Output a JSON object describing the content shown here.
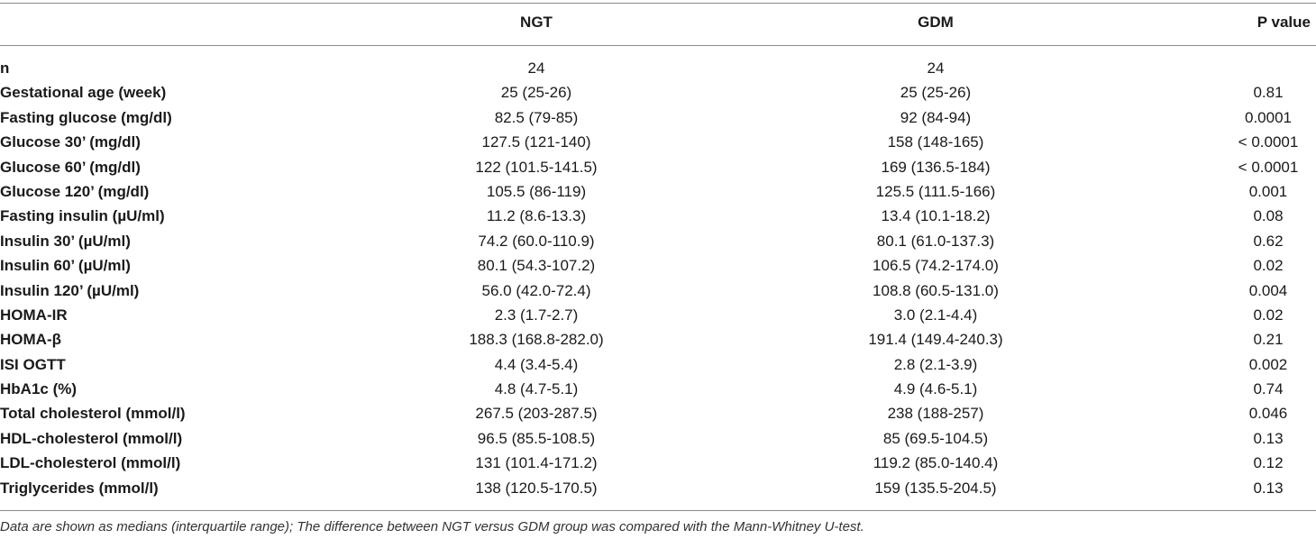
{
  "table": {
    "headers": {
      "label": "",
      "ngt": "NGT",
      "gdm": "GDM",
      "p": "P value"
    },
    "rows": [
      {
        "label": "n",
        "ngt": "24",
        "gdm": "24",
        "p": ""
      },
      {
        "label": "Gestational age (week)",
        "ngt": "25 (25-26)",
        "gdm": "25 (25-26)",
        "p": "0.81"
      },
      {
        "label": "Fasting glucose (mg/dl)",
        "ngt": "82.5 (79-85)",
        "gdm": "92 (84-94)",
        "p": "0.0001"
      },
      {
        "label": "Glucose 30’ (mg/dl)",
        "ngt": "127.5 (121-140)",
        "gdm": "158 (148-165)",
        "p": "< 0.0001"
      },
      {
        "label": "Glucose 60’ (mg/dl)",
        "ngt": "122 (101.5-141.5)",
        "gdm": "169 (136.5-184)",
        "p": "< 0.0001"
      },
      {
        "label": "Glucose 120’ (mg/dl)",
        "ngt": "105.5 (86-119)",
        "gdm": "125.5 (111.5-166)",
        "p": "0.001"
      },
      {
        "label": "Fasting insulin (µU/ml)",
        "ngt": "11.2 (8.6-13.3)",
        "gdm": "13.4 (10.1-18.2)",
        "p": "0.08"
      },
      {
        "label": "Insulin 30’ (µU/ml)",
        "ngt": "74.2 (60.0-110.9)",
        "gdm": "80.1 (61.0-137.3)",
        "p": "0.62"
      },
      {
        "label": "Insulin 60’ (µU/ml)",
        "ngt": "80.1 (54.3-107.2)",
        "gdm": "106.5 (74.2-174.0)",
        "p": "0.02"
      },
      {
        "label": "Insulin 120’ (µU/ml)",
        "ngt": "56.0 (42.0-72.4)",
        "gdm": "108.8 (60.5-131.0)",
        "p": "0.004"
      },
      {
        "label": "HOMA-IR",
        "ngt": "2.3 (1.7-2.7)",
        "gdm": "3.0 (2.1-4.4)",
        "p": "0.02"
      },
      {
        "label": "HOMA-β",
        "ngt": "188.3 (168.8-282.0)",
        "gdm": "191.4 (149.4-240.3)",
        "p": "0.21"
      },
      {
        "label": "ISI OGTT",
        "ngt": "4.4 (3.4-5.4)",
        "gdm": "2.8 (2.1-3.9)",
        "p": "0.002"
      },
      {
        "label": "HbA1c (%)",
        "ngt": "4.8 (4.7-5.1)",
        "gdm": "4.9 (4.6-5.1)",
        "p": "0.74"
      },
      {
        "label": "Total cholesterol (mmol/l)",
        "ngt": "267.5 (203-287.5)",
        "gdm": "238 (188-257)",
        "p": "0.046"
      },
      {
        "label": "HDL-cholesterol (mmol/l)",
        "ngt": "96.5 (85.5-108.5)",
        "gdm": "85 (69.5-104.5)",
        "p": "0.13"
      },
      {
        "label": "LDL-cholesterol (mmol/l)",
        "ngt": "131 (101.4-171.2)",
        "gdm": "119.2 (85.0-140.4)",
        "p": "0.12"
      },
      {
        "label": "Triglycerides (mmol/l)",
        "ngt": "138 (120.5-170.5)",
        "gdm": "159 (135.5-204.5)",
        "p": "0.13"
      }
    ],
    "footnote": "Data are shown as medians (interquartile range); The difference between NGT versus GDM group was compared with the Mann-Whitney U-test."
  }
}
